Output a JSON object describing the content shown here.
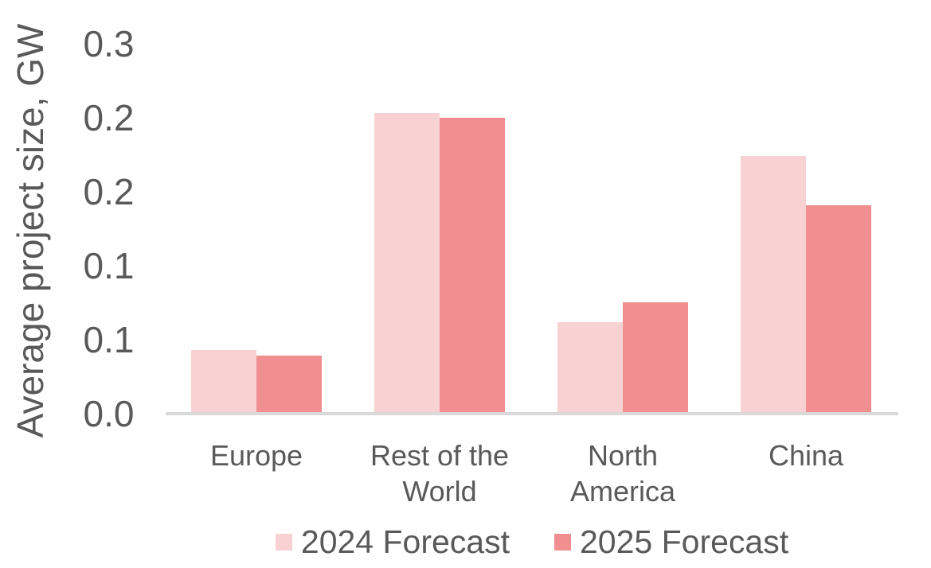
{
  "chart_data": {
    "type": "bar",
    "title": "",
    "ylabel": "Average project size, GW",
    "xlabel": "",
    "categories": [
      "Europe",
      "Rest of the World",
      "North America",
      "China"
    ],
    "series": [
      {
        "name": "2024 Forecast",
        "color": "#F8D1D3",
        "values": [
          0.043,
          0.203,
          0.062,
          0.174
        ]
      },
      {
        "name": "2025 Forecast",
        "color": "#F08E90",
        "values": [
          0.039,
          0.2,
          0.075,
          0.141
        ]
      }
    ],
    "ylim": [
      0,
      0.25
    ],
    "y_tick_step": 0.05,
    "y_tick_labels_top_to_bottom": [
      "0.3",
      "0.2",
      "0.2",
      "0.1",
      "0.1",
      "0.0"
    ],
    "grid": false,
    "legend_position": "bottom",
    "colors": {
      "text": "#595959",
      "axis_line": "#D9D9D9",
      "background": "#FFFFFF"
    }
  }
}
